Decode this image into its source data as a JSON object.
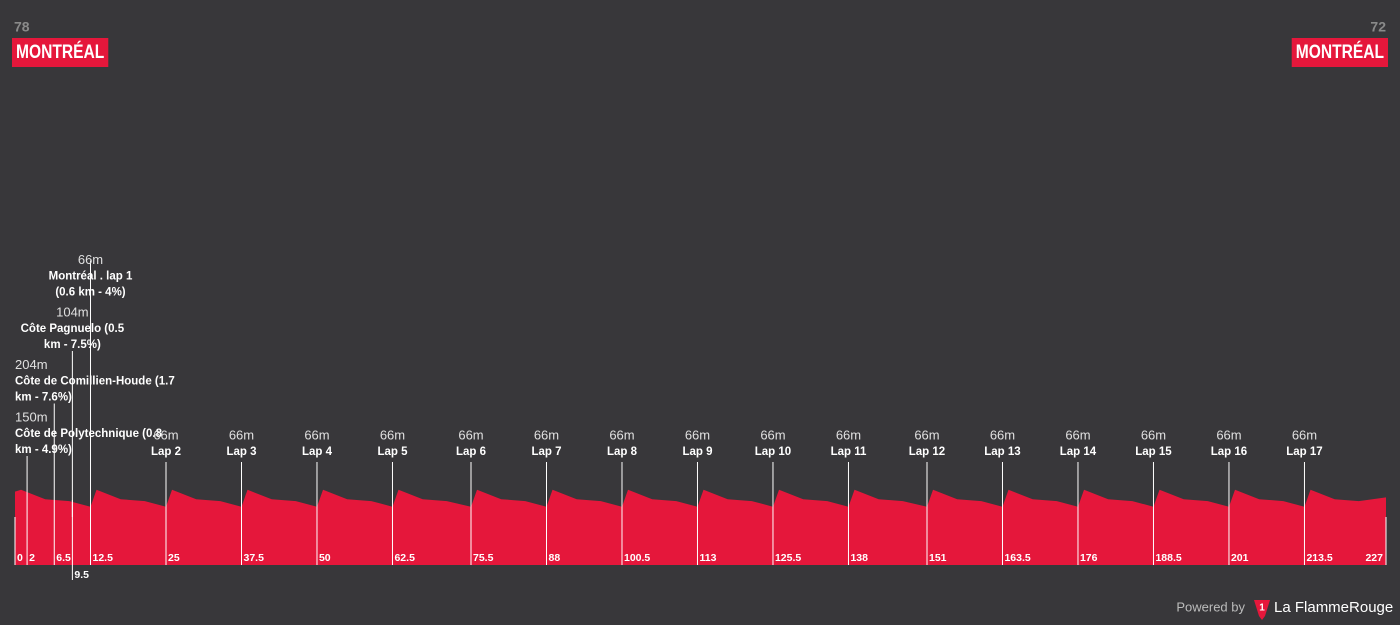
{
  "chart_data": {
    "type": "profile",
    "start": {
      "elevation": 78,
      "name": "MONTRÉAL"
    },
    "finish": {
      "elevation": 72,
      "name": "MONTRÉAL"
    },
    "xlim": [
      0,
      227
    ],
    "ylim": [
      0,
      250
    ],
    "color": "#e5173b",
    "xticks": [
      0,
      2,
      6.5,
      9.5,
      12.5,
      25,
      37.5,
      50,
      62.5,
      75.5,
      88,
      100.5,
      113,
      125.5,
      138,
      151,
      163.5,
      176,
      188.5,
      201,
      213.5,
      227
    ],
    "x": [
      0,
      1,
      5,
      9,
      12.5,
      13.5,
      17.5,
      21.5,
      25,
      26,
      30,
      34,
      37.5,
      38.5,
      42.5,
      46.5,
      50,
      51,
      55,
      59,
      62.5,
      63.5,
      67.5,
      71.5,
      75.5,
      76.5,
      80.5,
      84.5,
      88,
      89,
      93,
      97,
      100.5,
      101.5,
      105.5,
      109.5,
      113,
      114,
      118,
      122,
      125.5,
      126.5,
      130.5,
      134.5,
      138,
      139,
      143,
      147,
      151,
      152,
      156,
      160,
      163.5,
      164.5,
      168.5,
      172.5,
      176,
      177,
      181,
      185,
      188.5,
      189.5,
      193.5,
      197.5,
      201,
      202,
      206,
      210,
      213.5,
      214.5,
      218.5,
      222.5,
      227
    ],
    "values": [
      78,
      80,
      70,
      68,
      62,
      80,
      70,
      68,
      62,
      80,
      70,
      68,
      62,
      80,
      70,
      68,
      62,
      80,
      70,
      68,
      62,
      80,
      70,
      68,
      62,
      80,
      70,
      68,
      62,
      80,
      70,
      68,
      62,
      80,
      70,
      68,
      62,
      80,
      70,
      68,
      62,
      80,
      70,
      68,
      62,
      80,
      70,
      68,
      62,
      80,
      70,
      68,
      62,
      80,
      70,
      68,
      62,
      80,
      70,
      68,
      62,
      80,
      70,
      68,
      62,
      80,
      70,
      68,
      62,
      80,
      70,
      68,
      72
    ],
    "climbs": [
      {
        "km": 2,
        "altitude": "150m",
        "name": [
          "Côte de Polytechnique (0.8",
          "km - 4.9%)"
        ]
      },
      {
        "km": 6.5,
        "altitude": "204m",
        "name": [
          "Côte de Comillien-Houde (1.7",
          "km - 7.6%)"
        ]
      },
      {
        "km": 9.5,
        "altitude": "104m",
        "name": [
          "Côte Pagnuelo (0.5",
          "km - 7.5%)"
        ]
      },
      {
        "km": 12.5,
        "altitude": "66m",
        "name": [
          "Montréal . lap 1",
          "(0.6 km - 4%)"
        ]
      }
    ],
    "laps": [
      {
        "km": 25,
        "altitude": "66m",
        "name": "Lap 2"
      },
      {
        "km": 37.5,
        "altitude": "66m",
        "name": "Lap 3"
      },
      {
        "km": 50,
        "altitude": "66m",
        "name": "Lap 4"
      },
      {
        "km": 62.5,
        "altitude": "66m",
        "name": "Lap 5"
      },
      {
        "km": 75.5,
        "altitude": "66m",
        "name": "Lap 6"
      },
      {
        "km": 88,
        "altitude": "66m",
        "name": "Lap 7"
      },
      {
        "km": 100.5,
        "altitude": "66m",
        "name": "Lap 8"
      },
      {
        "km": 113,
        "altitude": "66m",
        "name": "Lap 9"
      },
      {
        "km": 125.5,
        "altitude": "66m",
        "name": "Lap 10"
      },
      {
        "km": 138,
        "altitude": "66m",
        "name": "Lap 11"
      },
      {
        "km": 151,
        "altitude": "66m",
        "name": "Lap 12"
      },
      {
        "km": 163.5,
        "altitude": "66m",
        "name": "Lap 13"
      },
      {
        "km": 176,
        "altitude": "66m",
        "name": "Lap 14"
      },
      {
        "km": 188.5,
        "altitude": "66m",
        "name": "Lap 15"
      },
      {
        "km": 201,
        "altitude": "66m",
        "name": "Lap 16"
      },
      {
        "km": 213.5,
        "altitude": "66m",
        "name": "Lap 17"
      }
    ]
  },
  "footer": {
    "powered_by": "Powered by",
    "brand": "La FlammeRouge"
  }
}
